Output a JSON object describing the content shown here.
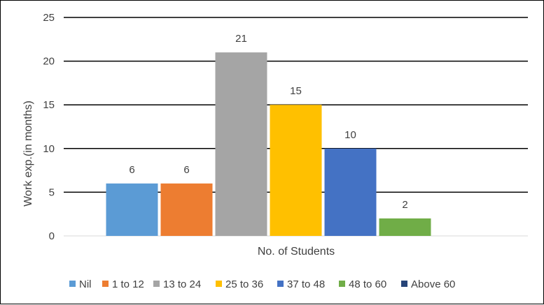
{
  "chart_data": {
    "type": "bar",
    "title": "",
    "xlabel": "No. of Students",
    "ylabel": "Work exp.(in months)",
    "ylim": [
      0,
      25
    ],
    "yticks": [
      0,
      5,
      10,
      15,
      20,
      25
    ],
    "grid": true,
    "legend_position": "bottom",
    "series": [
      {
        "name": "Nil",
        "value": 6,
        "color": "#5B9BD5"
      },
      {
        "name": "1 to 12",
        "value": 6,
        "color": "#ED7D31"
      },
      {
        "name": "13 to 24",
        "value": 21,
        "color": "#A5A5A5"
      },
      {
        "name": "25 to 36",
        "value": 15,
        "color": "#FFC000"
      },
      {
        "name": "37 to 48",
        "value": 10,
        "color": "#4472C4"
      },
      {
        "name": "48 to 60",
        "value": 2,
        "color": "#70AD47"
      },
      {
        "name": "Above 60",
        "value": 0,
        "color": "#264478"
      }
    ]
  }
}
